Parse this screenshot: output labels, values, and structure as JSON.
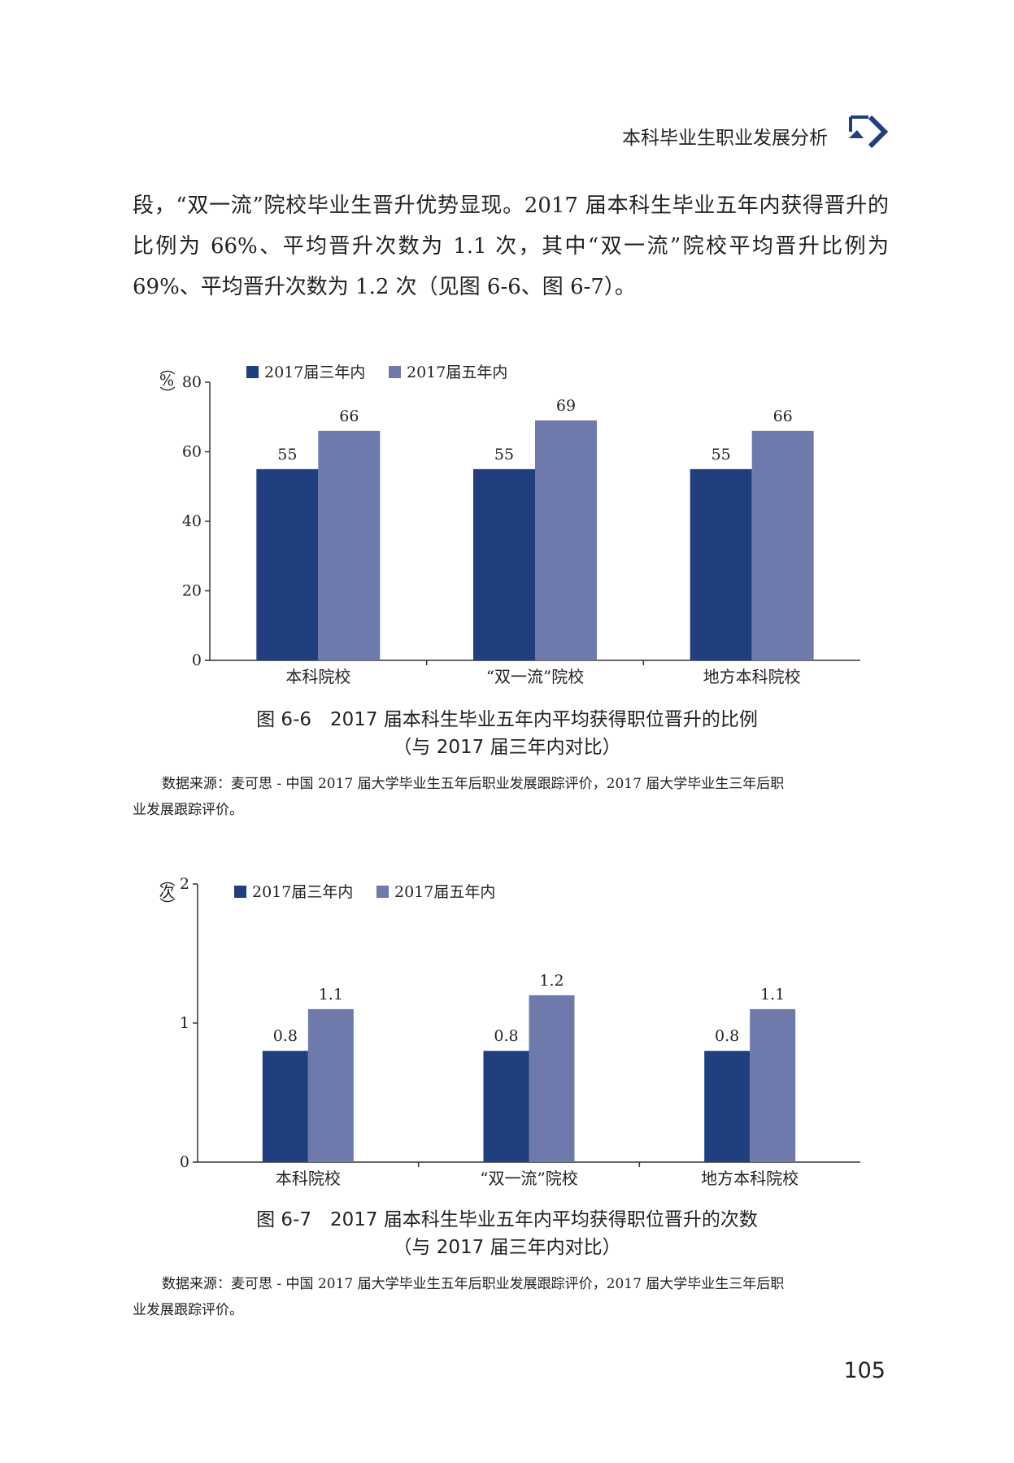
{
  "header": {
    "title": "本科毕业生职业发展分析"
  },
  "body_text": "段，“双一流”院校毕业生晋升优势显现。2017 届本科生毕业五年内获得晋升的比例为 66%、平均晋升次数为 1.1 次，其中“双一流”院校平均晋升比例为 69%、平均晋升次数为 1.2 次（见图 6-6、图 6-7）。",
  "colors": {
    "series1": "#1f3f7f",
    "series2": "#6e7aab"
  },
  "chart_data": [
    {
      "type": "bar",
      "ylabel": "（%）",
      "categories": [
        "本科院校",
        "“双一流”院校",
        "地方本科院校"
      ],
      "series": [
        {
          "name": "2017届三年内",
          "values": [
            55,
            55,
            55
          ],
          "labels": [
            "55",
            "55",
            "55"
          ]
        },
        {
          "name": "2017届五年内",
          "values": [
            66,
            69,
            66
          ],
          "labels": [
            "66",
            "69",
            "66"
          ]
        }
      ],
      "ylim": [
        0,
        80
      ],
      "yticks": [
        "0",
        "20",
        "40",
        "60",
        "80"
      ],
      "legend": "top-left",
      "grid": false
    },
    {
      "type": "bar",
      "ylabel": "（次）",
      "categories": [
        "本科院校",
        "“双一流”院校",
        "地方本科院校"
      ],
      "series": [
        {
          "name": "2017届三年内",
          "values": [
            0.8,
            0.8,
            0.8
          ],
          "labels": [
            "0.8",
            "0.8",
            "0.8"
          ]
        },
        {
          "name": "2017届五年内",
          "values": [
            1.1,
            1.2,
            1.1
          ],
          "labels": [
            "1.1",
            "1.2",
            "1.1"
          ]
        }
      ],
      "ylim": [
        0,
        2
      ],
      "yticks": [
        "0",
        "1",
        "2"
      ],
      "legend": "top-left",
      "grid": false
    }
  ],
  "figures": [
    {
      "caption_line1": "图 6-6　2017 届本科生毕业五年内平均获得职位晋升的比例",
      "caption_line2": "（与 2017 届三年内对比）",
      "source_line1": "数据来源：麦可思 - 中国 2017 届大学毕业生五年后职业发展跟踪评价，2017 届大学毕业生三年后职",
      "source_line2": "业发展跟踪评价。"
    },
    {
      "caption_line1": "图 6-7　2017 届本科生毕业五年内平均获得职位晋升的次数",
      "caption_line2": "（与 2017 届三年内对比）",
      "source_line1": "数据来源：麦可思 - 中国 2017 届大学毕业生五年后职业发展跟踪评价，2017 届大学毕业生三年后职",
      "source_line2": "业发展跟踪评价。"
    }
  ],
  "page_number": "105",
  "logo": {
    "icon": "chapter-arrow-logo"
  }
}
